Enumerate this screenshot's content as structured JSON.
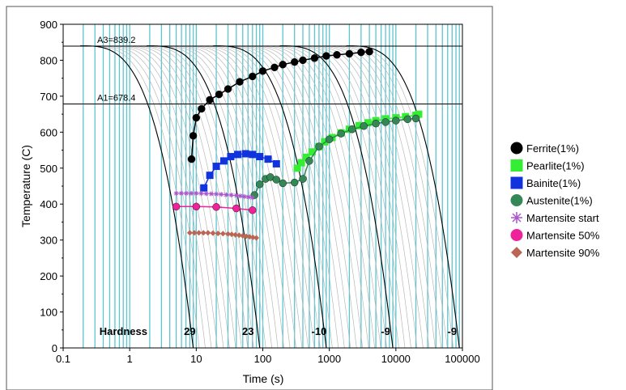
{
  "chart_data": {
    "type": "line",
    "title": "",
    "xlabel": "Time (s)",
    "ylabel": "Temperature (C)",
    "x_scale": "log",
    "xlim": [
      0.1,
      100000
    ],
    "ylim": [
      0,
      900
    ],
    "x_ticks": [
      "0.1",
      "1",
      "10",
      "100",
      "1000",
      "10000",
      "100000"
    ],
    "y_ticks": [
      "0",
      "100",
      "200",
      "300",
      "400",
      "500",
      "600",
      "700",
      "800",
      "900"
    ],
    "grid": false,
    "legend_position": "right",
    "reference_lines": [
      {
        "label": "A3=839.2",
        "y": 839.2
      },
      {
        "label": "A1=678.4",
        "y": 678.4
      }
    ],
    "hardness": {
      "label": "Hardness",
      "values": [
        {
          "x": 8,
          "text": "29"
        },
        {
          "x": 60,
          "text": "23"
        },
        {
          "x": 700,
          "text": "-10"
        },
        {
          "x": 7000,
          "text": "-9"
        },
        {
          "x": 70000,
          "text": "-9"
        }
      ]
    },
    "cooling_curves": [
      {
        "x0": 0.18,
        "x_end": 9
      },
      {
        "x0": 1.8,
        "x_end": 90
      },
      {
        "x0": 18,
        "x_end": 900
      },
      {
        "x0": 180,
        "x_end": 9000
      },
      {
        "x0": 1800,
        "x_end": 90000
      }
    ],
    "series": [
      {
        "name": "Ferrite(1%)",
        "color": "#000000",
        "marker": "circle",
        "points": [
          [
            8.5,
            525
          ],
          [
            9,
            590
          ],
          [
            10,
            640
          ],
          [
            12,
            665
          ],
          [
            16,
            690
          ],
          [
            22,
            705
          ],
          [
            30,
            720
          ],
          [
            45,
            740
          ],
          [
            70,
            755
          ],
          [
            100,
            770
          ],
          [
            150,
            780
          ],
          [
            200,
            788
          ],
          [
            300,
            795
          ],
          [
            400,
            800
          ],
          [
            600,
            806
          ],
          [
            900,
            812
          ],
          [
            1300,
            815
          ],
          [
            2000,
            818
          ],
          [
            3000,
            822
          ],
          [
            4000,
            824
          ]
        ]
      },
      {
        "name": "Pearlite(1%)",
        "color": "#33ee33",
        "marker": "square",
        "points": [
          [
            330,
            500
          ],
          [
            380,
            515
          ],
          [
            450,
            530
          ],
          [
            550,
            545
          ],
          [
            700,
            560
          ],
          [
            850,
            573
          ],
          [
            1100,
            585
          ],
          [
            1500,
            598
          ],
          [
            2000,
            608
          ],
          [
            2800,
            618
          ],
          [
            3800,
            626
          ],
          [
            5000,
            632
          ],
          [
            7000,
            637
          ],
          [
            10000,
            640
          ],
          [
            14000,
            643
          ],
          [
            20000,
            647
          ],
          [
            22000,
            650
          ]
        ]
      },
      {
        "name": "Bainite(1%)",
        "color": "#1133dd",
        "marker": "square",
        "points": [
          [
            13,
            445
          ],
          [
            16,
            480
          ],
          [
            20,
            505
          ],
          [
            26,
            520
          ],
          [
            33,
            532
          ],
          [
            42,
            538
          ],
          [
            55,
            540
          ],
          [
            70,
            538
          ],
          [
            90,
            532
          ],
          [
            120,
            525
          ],
          [
            160,
            512
          ]
        ]
      },
      {
        "name": "Austenite(1%)",
        "color": "#338855",
        "marker": "circle",
        "points": [
          [
            75,
            425
          ],
          [
            90,
            455
          ],
          [
            110,
            470
          ],
          [
            130,
            475
          ],
          [
            160,
            468
          ],
          [
            200,
            458
          ],
          [
            300,
            460
          ],
          [
            400,
            470
          ],
          [
            500,
            520
          ],
          [
            700,
            560
          ],
          [
            1000,
            580
          ],
          [
            1500,
            596
          ],
          [
            2200,
            608
          ],
          [
            3300,
            617
          ],
          [
            5000,
            624
          ],
          [
            7000,
            628
          ],
          [
            10000,
            632
          ],
          [
            15000,
            636
          ],
          [
            20000,
            638
          ]
        ]
      },
      {
        "name": "Martensite start",
        "color": "#aa55cc",
        "marker": "star",
        "points": [
          [
            5,
            430
          ],
          [
            10,
            430
          ],
          [
            20,
            428
          ],
          [
            40,
            424
          ],
          [
            70,
            418
          ]
        ]
      },
      {
        "name": "Martensite 50%",
        "color": "#ee2299",
        "marker": "circle",
        "points": [
          [
            5,
            393
          ],
          [
            10,
            393
          ],
          [
            20,
            392
          ],
          [
            40,
            388
          ],
          [
            70,
            383
          ]
        ]
      },
      {
        "name": "Martensite 90%",
        "color": "#bb6655",
        "marker": "diamond",
        "points": [
          [
            8,
            320
          ],
          [
            15,
            320
          ],
          [
            30,
            317
          ],
          [
            50,
            312
          ],
          [
            80,
            306
          ]
        ]
      }
    ]
  }
}
